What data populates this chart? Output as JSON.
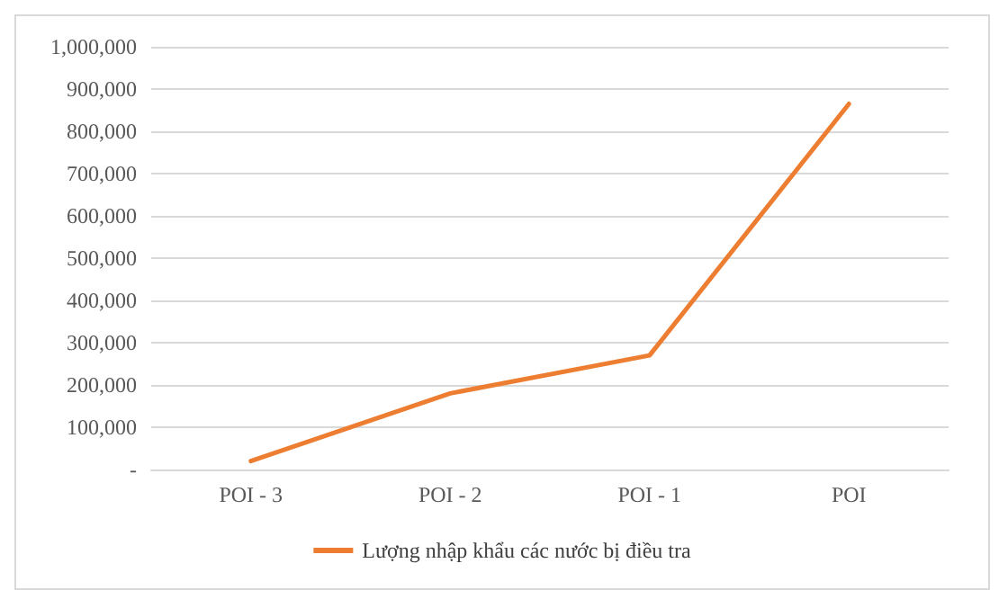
{
  "chart_data": {
    "type": "line",
    "categories": [
      "POI - 3",
      "POI - 2",
      "POI - 1",
      "POI"
    ],
    "series": [
      {
        "name": "Lượng nhập khẩu các nước bị điều tra",
        "color": "#ed7d31",
        "values": [
          20000,
          180000,
          270000,
          865000
        ]
      }
    ],
    "ylim": [
      0,
      1000000
    ],
    "yticks": [
      {
        "value": 0,
        "label": "-"
      },
      {
        "value": 100000,
        "label": "100,000"
      },
      {
        "value": 200000,
        "label": "200,000"
      },
      {
        "value": 300000,
        "label": "300,000"
      },
      {
        "value": 400000,
        "label": "400,000"
      },
      {
        "value": 500000,
        "label": "500,000"
      },
      {
        "value": 600000,
        "label": "600,000"
      },
      {
        "value": 700000,
        "label": "700,000"
      },
      {
        "value": 800000,
        "label": "800,000"
      },
      {
        "value": 900000,
        "label": "900,000"
      },
      {
        "value": 1000000,
        "label": "1,000,000"
      }
    ],
    "grid": "y",
    "legend": "bottom",
    "marker": "none",
    "line_style": "solid"
  }
}
